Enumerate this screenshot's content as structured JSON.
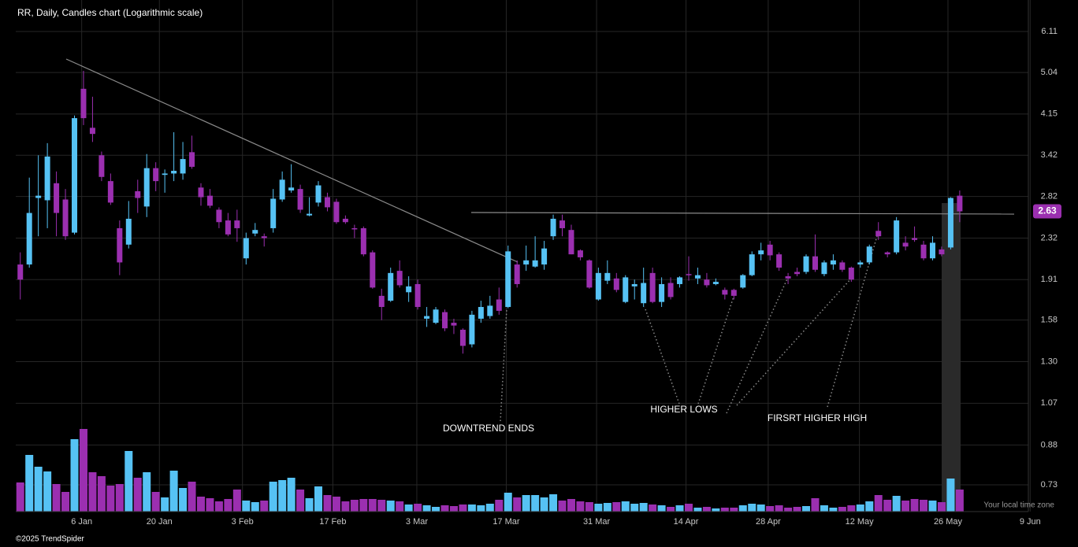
{
  "chart_data": {
    "type": "candlestick",
    "title": "RR, Daily, Candles chart (Logarithmic scale)",
    "log_scale": true,
    "grid": true,
    "up_color": "#56c2f4",
    "down_color": "#9b2fb0",
    "ylim": [
      0.644,
      7.08
    ],
    "yticks": [
      6.11,
      5.04,
      4.15,
      3.42,
      2.82,
      2.32,
      1.91,
      1.58,
      {
        "value": 1.3,
        "label": "1.30"
      },
      1.07,
      0.88,
      0.73
    ],
    "xlim": [
      -0.5,
      111.6
    ],
    "xticks": [
      {
        "value": 6.8,
        "label": "6 Jan"
      },
      {
        "value": 15.4,
        "label": "20 Jan"
      },
      {
        "value": 24.6,
        "label": "3 Feb"
      },
      {
        "value": 34.6,
        "label": "17 Feb"
      },
      {
        "value": 43.9,
        "label": "3 Mar"
      },
      {
        "value": 53.8,
        "label": "17 Mar"
      },
      {
        "value": 63.8,
        "label": "31 Mar"
      },
      {
        "value": 73.7,
        "label": "14 Apr"
      },
      {
        "value": 82.8,
        "label": "28 Apr"
      },
      {
        "value": 92.9,
        "label": "12 May"
      },
      {
        "value": 102.7,
        "label": "26 May"
      },
      {
        "value": 111.8,
        "label": "9 Jun"
      }
    ],
    "open": [
      2.05,
      2.05,
      2.8,
      2.77,
      3.0,
      2.78,
      2.38,
      4.67,
      3.89,
      3.42,
      3.03,
      2.43,
      2.25,
      2.89,
      2.69,
      3.22,
      3.12,
      3.14,
      3.14,
      3.47,
      2.94,
      2.83,
      2.65,
      2.52,
      2.52,
      2.11,
      2.37,
      2.34,
      2.43,
      2.78,
      2.9,
      2.92,
      2.58,
      2.74,
      2.81,
      2.75,
      2.54,
      2.43,
      2.43,
      2.17,
      1.77,
      1.73,
      1.99,
      1.8,
      1.87,
      1.59,
      1.56,
      1.64,
      1.56,
      1.51,
      1.41,
      1.59,
      1.61,
      1.74,
      1.68,
      2.05,
      2.05,
      2.03,
      2.05,
      2.34,
      2.52,
      2.41,
      2.19,
      2.09,
      1.74,
      1.9,
      1.92,
      1.72,
      1.85,
      1.71,
      1.97,
      1.72,
      1.88,
      1.87,
      1.96,
      1.92,
      1.91,
      1.87,
      1.82,
      1.82,
      1.84,
      1.95,
      2.15,
      2.25,
      2.15,
      1.94,
      1.98,
      1.98,
      2.13,
      1.96,
      2.05,
      2.07,
      2.02,
      2.05,
      2.07,
      2.4,
      2.17,
      2.17,
      2.27,
      2.32,
      2.25,
      2.11,
      2.2,
      2.22,
      2.83
    ],
    "high": [
      2.17,
      3.08,
      3.42,
      3.62,
      3.17,
      2.92,
      4.12,
      5.08,
      4.5,
      3.48,
      3.14,
      2.52,
      2.76,
      3.05,
      3.44,
      3.31,
      3.2,
      3.81,
      3.64,
      3.75,
      3.0,
      2.92,
      2.68,
      2.61,
      2.65,
      2.38,
      2.49,
      2.37,
      2.92,
      3.17,
      3.28,
      2.98,
      2.81,
      3.03,
      2.87,
      2.79,
      2.58,
      2.47,
      2.45,
      2.19,
      1.83,
      2.02,
      2.09,
      1.94,
      1.91,
      1.68,
      1.68,
      1.66,
      1.59,
      1.52,
      1.65,
      1.73,
      1.77,
      1.84,
      2.24,
      2.09,
      2.24,
      2.34,
      2.29,
      2.59,
      2.59,
      2.47,
      2.2,
      2.1,
      2.02,
      2.09,
      1.97,
      1.95,
      1.91,
      2.02,
      2.02,
      1.93,
      1.93,
      1.94,
      2.13,
      2.02,
      1.97,
      1.92,
      1.84,
      1.83,
      1.96,
      2.18,
      2.27,
      2.29,
      2.17,
      1.97,
      2.02,
      2.15,
      2.36,
      2.09,
      2.15,
      2.09,
      2.03,
      2.09,
      2.25,
      2.5,
      2.18,
      2.56,
      2.34,
      2.45,
      2.29,
      2.34,
      2.23,
      2.81,
      2.9
    ],
    "low": [
      1.74,
      2.02,
      2.34,
      2.43,
      2.34,
      2.3,
      2.36,
      3.94,
      3.64,
      3.03,
      2.71,
      1.95,
      2.21,
      2.61,
      2.56,
      2.89,
      2.87,
      3.03,
      3.05,
      3.21,
      2.7,
      2.67,
      2.43,
      2.34,
      2.28,
      2.05,
      2.34,
      2.23,
      2.38,
      2.75,
      2.87,
      2.61,
      2.57,
      2.69,
      2.63,
      2.48,
      2.48,
      2.32,
      2.13,
      1.83,
      1.58,
      1.72,
      1.84,
      1.72,
      1.66,
      1.53,
      1.55,
      1.5,
      1.48,
      1.35,
      1.39,
      1.56,
      1.59,
      1.62,
      1.67,
      1.84,
      1.99,
      2.02,
      2.0,
      2.3,
      2.34,
      2.15,
      2.09,
      1.83,
      1.73,
      1.87,
      1.8,
      1.71,
      1.74,
      1.68,
      1.71,
      1.68,
      1.74,
      1.84,
      1.9,
      1.87,
      1.84,
      1.86,
      1.74,
      1.74,
      1.83,
      1.94,
      2.09,
      2.09,
      1.99,
      1.87,
      1.94,
      1.96,
      1.98,
      1.94,
      2.0,
      1.98,
      1.89,
      2.02,
      2.05,
      2.3,
      2.12,
      2.15,
      2.19,
      2.28,
      2.09,
      2.09,
      2.13,
      2.2,
      2.5
    ],
    "close": [
      1.91,
      2.61,
      2.83,
      3.4,
      2.61,
      2.34,
      4.07,
      4.07,
      3.78,
      3.09,
      2.74,
      2.07,
      2.54,
      2.8,
      3.22,
      3.03,
      3.14,
      3.18,
      3.36,
      3.24,
      2.81,
      2.7,
      2.5,
      2.36,
      2.43,
      2.32,
      2.41,
      2.32,
      2.79,
      3.05,
      2.94,
      2.65,
      2.6,
      2.97,
      2.68,
      2.5,
      2.5,
      2.42,
      2.15,
      1.84,
      1.68,
      1.97,
      1.86,
      1.85,
      1.68,
      1.61,
      1.66,
      1.52,
      1.54,
      1.4,
      1.62,
      1.68,
      1.69,
      1.65,
      2.18,
      1.87,
      2.09,
      2.09,
      2.21,
      2.54,
      2.43,
      2.15,
      2.12,
      1.84,
      1.97,
      1.97,
      1.82,
      1.93,
      1.87,
      1.88,
      1.72,
      1.87,
      1.76,
      1.93,
      1.95,
      1.95,
      1.86,
      1.89,
      1.78,
      1.77,
      1.95,
      2.15,
      2.19,
      2.14,
      2.02,
      1.92,
      1.96,
      2.13,
      2.0,
      2.07,
      2.09,
      2.0,
      1.91,
      2.07,
      2.23,
      2.34,
      2.15,
      2.52,
      2.23,
      2.3,
      2.11,
      2.27,
      2.15,
      2.8,
      2.63
    ],
    "volume": [
      37,
      72,
      57,
      51,
      35,
      25,
      92,
      105,
      50,
      45,
      33,
      35,
      77,
      43,
      50,
      25,
      18,
      52,
      30,
      38,
      19,
      17,
      13,
      16,
      28,
      14,
      12,
      14,
      38,
      40,
      43,
      28,
      17,
      32,
      21,
      19,
      13,
      15,
      16,
      16,
      15,
      14,
      13,
      9,
      10,
      8,
      6,
      8,
      7,
      9,
      9,
      8,
      10,
      15,
      24,
      18,
      21,
      21,
      18,
      22,
      14,
      16,
      13,
      12,
      10,
      11,
      12,
      13,
      10,
      11,
      9,
      8,
      6,
      8,
      10,
      5,
      6,
      4,
      5,
      5,
      8,
      10,
      9,
      7,
      8,
      5,
      6,
      7,
      17,
      8,
      5,
      6,
      8,
      9,
      13,
      21,
      15,
      20,
      14,
      16,
      15,
      14,
      12,
      42,
      28
    ],
    "last_price": 2.63,
    "annotations": [
      "DOWNTREND ENDS",
      "HIGHER LOWS",
      "FIRSRT HIGHER HIGH"
    ],
    "timezone_note": "Your local time zone",
    "credit": "©2025 TrendSpider"
  }
}
